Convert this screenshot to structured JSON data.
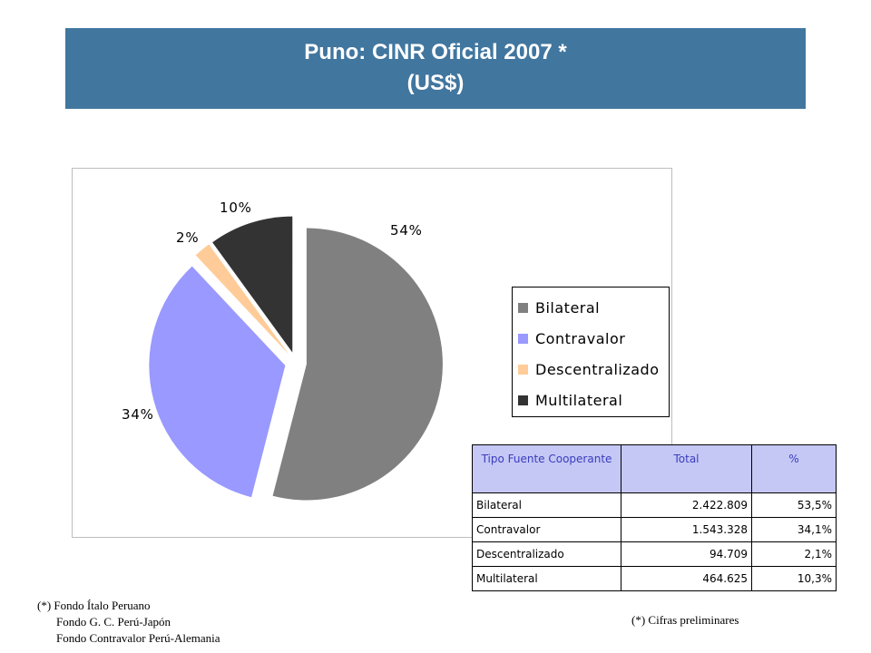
{
  "header": {
    "title_line1": "Puno: CINR  Oficial  2007 *",
    "title_line2": "(US$)"
  },
  "colors": {
    "banner": "#41769f",
    "table_header_bg": "#c5c8f5",
    "table_header_text": "#3a3dbb"
  },
  "chart_data": {
    "type": "pie",
    "title": "",
    "slices": [
      {
        "name": "Bilateral",
        "value": 54,
        "label": "54%",
        "color": "#808080"
      },
      {
        "name": "Contravalor",
        "value": 34,
        "label": "34%",
        "color": "#9999ff"
      },
      {
        "name": "Descentralizado",
        "value": 2,
        "label": "2%",
        "color": "#ffcc99"
      },
      {
        "name": "Multilateral",
        "value": 10,
        "label": "10%",
        "color": "#333333"
      }
    ],
    "exploded": true,
    "legend_position": "right"
  },
  "legend": {
    "items": [
      {
        "label": "Bilateral",
        "color": "#808080"
      },
      {
        "label": "Contravalor",
        "color": "#9999ff"
      },
      {
        "label": "Descentralizado",
        "color": "#ffcc99"
      },
      {
        "label": "Multilateral",
        "color": "#333333"
      }
    ]
  },
  "table": {
    "headers": [
      "Tipo Fuente Cooperante",
      "Total",
      "%"
    ],
    "rows": [
      {
        "tipo": "Bilateral",
        "total": "2.422.809",
        "pct": "53,5%"
      },
      {
        "tipo": "Contravalor",
        "total": "1.543.328",
        "pct": "34,1%"
      },
      {
        "tipo": "Descentralizado",
        "total": "94.709",
        "pct": "2,1%"
      },
      {
        "tipo": "Multilateral",
        "total": "464.625",
        "pct": "10,3%"
      }
    ]
  },
  "notes": {
    "left_line1": "(*)  Fondo Ítalo Peruano",
    "left_line2": "Fondo G. C.  Perú-Japón",
    "left_line3": "Fondo Contravalor Perú-Alemania",
    "right": "(*) Cifras preliminares"
  }
}
